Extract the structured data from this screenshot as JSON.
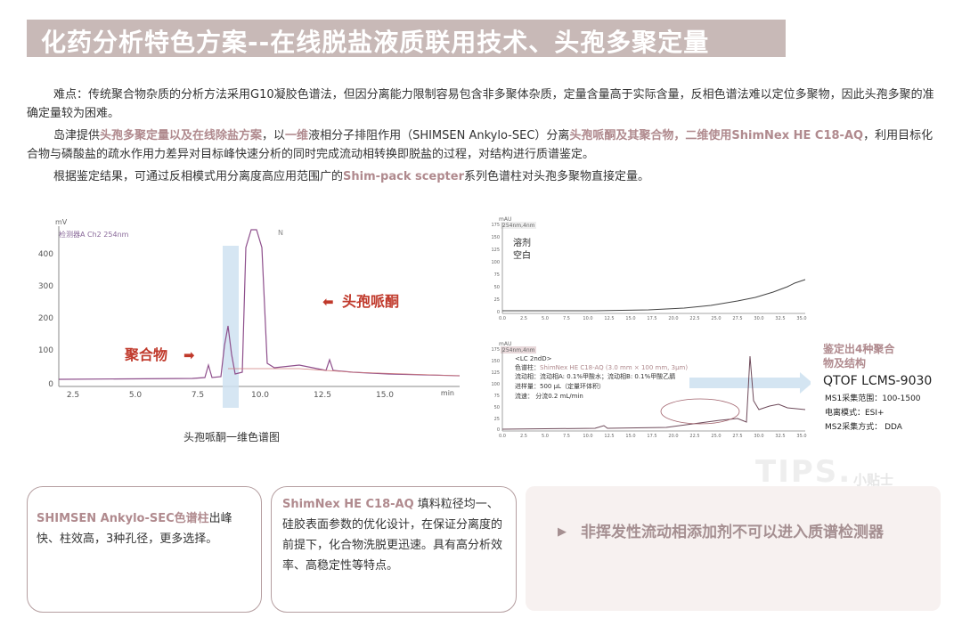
{
  "header": {
    "title": "化药分析特色方案--在线脱盐液质联用技术、头孢多聚定量"
  },
  "intro": {
    "p1": "难点：传统聚合物杂质的分析方法采用G10凝胶色谱法，但因分离能力限制容易包含非多聚体杂质，定量含量高于实际含量，反相色谱法难以定位多聚物，因此头孢多聚的准确定量较为困难。",
    "p2_a": "岛津提供",
    "p2_b": "头孢多聚定量以及在线除盐方案",
    "p2_c": "，以",
    "p2_d": "一维",
    "p2_e": "液相分子排阻作用（SHIMSEN Ankylo-SEC）分离",
    "p2_f": "头孢哌酮及其聚合物，二维使用ShimNex HE C18-AQ",
    "p2_g": "，利用目标化合物与磷酸盐的疏水作用力差异对目标峰快速分析的同时完成流动相转换即脱盐的过程，对结构进行质谱鉴定。",
    "p3_a": "根据鉴定结果，可通过反相模式用分离度高应用范围广的",
    "p3_b": "Shim-pack scepter",
    "p3_c": "系列色谱柱对头孢多聚物直接定量。"
  },
  "chart_left": {
    "ylabel": "mV",
    "channel": "检测器A Ch2 254nm",
    "xunit": "min",
    "yticks": [
      "400",
      "300",
      "200",
      "100",
      "0"
    ],
    "xticks": [
      "2.5",
      "5.0",
      "7.5",
      "10.0",
      "12.5",
      "15.0"
    ],
    "annot_ceph": "头孢哌酮",
    "annot_poly": "聚合物",
    "caption": "头孢哌酮一维色谱图"
  },
  "chart_top_right": {
    "ylabel": "mAU",
    "channel": "254nm,4nm",
    "label1": "溶剂",
    "label2": "空白",
    "yticks": [
      "175",
      "150",
      "125",
      "100",
      "75",
      "50",
      "25",
      "0"
    ],
    "xticks": [
      "0.0",
      "2.5",
      "5.0",
      "7.5",
      "10.0",
      "12.5",
      "15.0",
      "17.5",
      "20.0",
      "22.5",
      "25.0",
      "27.5",
      "30.0",
      "32.5",
      "35.0"
    ],
    "xunit": "min"
  },
  "chart_bottom_right": {
    "ylabel": "mAU",
    "channel": "254nm,4nm",
    "lc": "<LC 2ndD>",
    "col_label": "色谱柱：",
    "col_value": "ShimNex HE C18-AQ (3.0 mm × 100 mm, 3μm)",
    "mobile": "流动相：流动相A: 0.1%甲酸水；流动相B: 0.1%甲酸乙腈",
    "inject": "进样量：500 μL（定量环体积）",
    "flow": "流速：  分流0.2 mL/min",
    "yticks": [
      "175",
      "150",
      "125",
      "100",
      "75",
      "50",
      "25",
      "0"
    ],
    "xticks": [
      "0.0",
      "2.5",
      "5.0",
      "7.5",
      "10.0",
      "12.5",
      "15.0",
      "17.5",
      "20.0",
      "22.5",
      "25.0",
      "27.5",
      "30.0",
      "32.5",
      "35.0"
    ],
    "xunit": "min"
  },
  "ms_panel": {
    "identified": "鉴定出4种聚合",
    "identified2": "物及结构",
    "instrument": "QTOF LCMS-9030",
    "ms1": "MS1采集范围：100-1500",
    "ion": "电离模式：ESI+",
    "ms2": "MS2采集方式： DDA"
  },
  "box1": {
    "hl": "SHIMSEN Ankylo-SEC色谱柱",
    "text": "出峰快、柱效高，3种孔径，更多选择。"
  },
  "box2": {
    "hl": "ShimNex HE C18-AQ",
    "text": " 填料粒径均一、硅胶表面参数的优化设计，在保证分离度的前提下，化合物洗脱更迅速。具有高分析效率、高稳定性等特点。"
  },
  "tips": {
    "watermark": "TIPS.",
    "small": "小贴士",
    "text": "非挥发性流动相添加剂不可以进入质谱检测器"
  },
  "colors": {
    "accent": "#b08a8e",
    "title_bg": "#c8b9b7",
    "arrow_blue": "#cfe2f1",
    "red": "#c0392b"
  }
}
